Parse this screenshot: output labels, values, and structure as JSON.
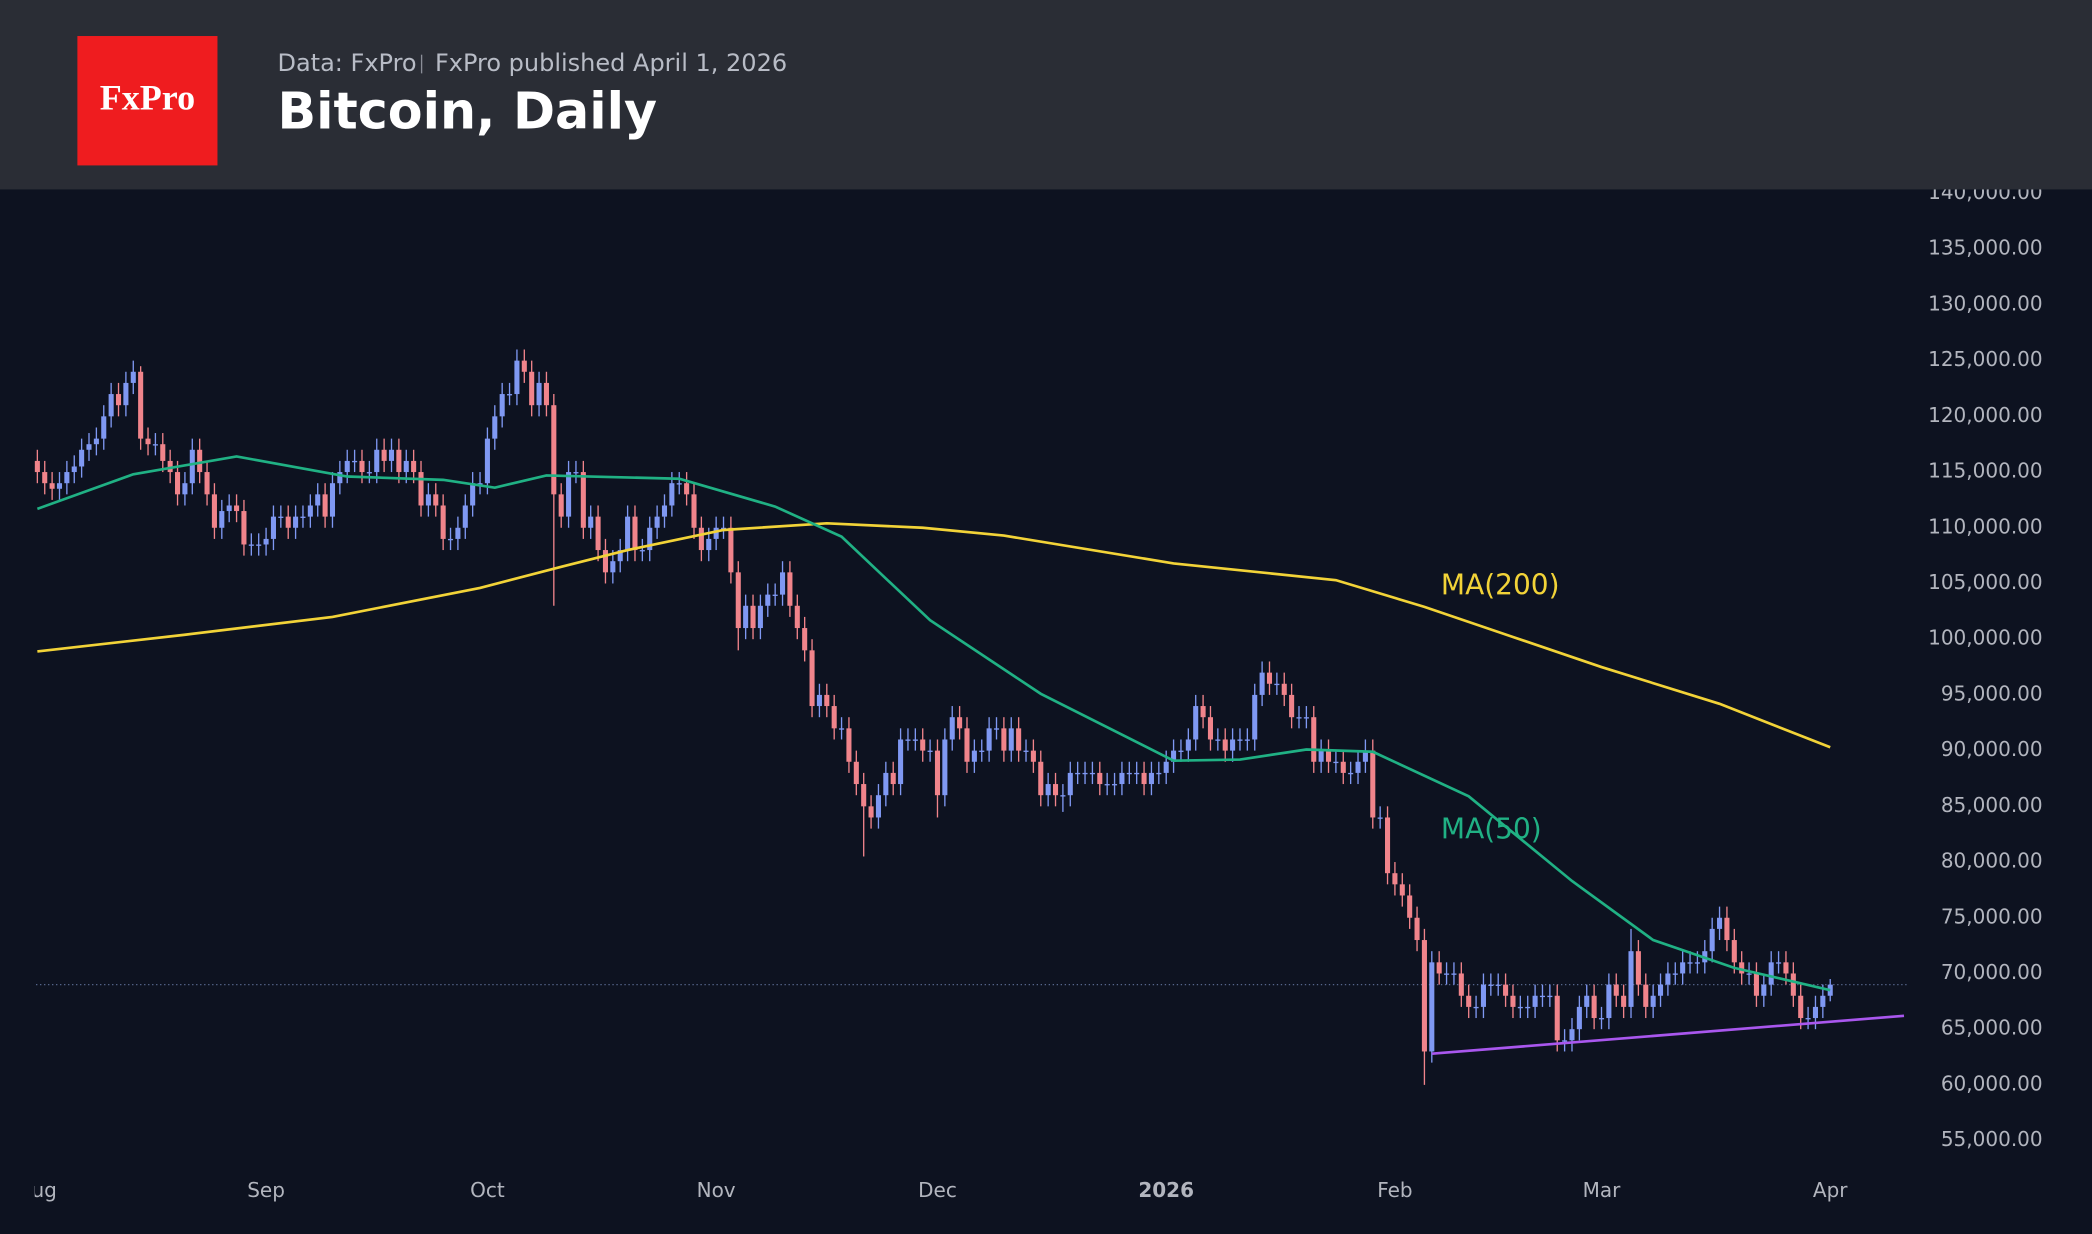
{
  "header": {
    "logo": "FxPro",
    "source": "Data: FxPro",
    "published": "FxPro published April 1, 2026",
    "title": "Bitcoin, Daily"
  },
  "chart_data": {
    "type": "candlestick",
    "categories": [
      "Aug",
      null,
      null,
      null,
      null,
      null,
      null,
      null,
      null,
      null,
      null,
      null,
      null,
      null,
      null,
      null,
      null,
      null,
      null,
      null,
      null,
      null,
      null,
      null,
      null,
      null,
      null,
      null,
      null,
      null,
      null,
      "Sep",
      null,
      null,
      null,
      null,
      null,
      null,
      null,
      null,
      null,
      null,
      null,
      null,
      null,
      null,
      null,
      null,
      null,
      null,
      null,
      null,
      null,
      null,
      null,
      null,
      null,
      null,
      null,
      null,
      null,
      "Oct",
      null,
      null,
      null,
      null,
      null,
      null,
      null,
      null,
      null,
      null,
      null,
      null,
      null,
      null,
      null,
      null,
      null,
      null,
      null,
      null,
      null,
      null,
      null,
      null,
      null,
      null,
      null,
      null,
      null,
      null,
      "Nov",
      null,
      null,
      null,
      null,
      null,
      null,
      null,
      null,
      null,
      null,
      null,
      null,
      null,
      null,
      null,
      null,
      null,
      null,
      null,
      null,
      null,
      null,
      null,
      null,
      null,
      null,
      null,
      null,
      null,
      "Dec",
      null,
      null,
      null,
      null,
      null,
      null,
      null,
      null,
      null,
      null,
      null,
      null,
      null,
      null,
      null,
      null,
      null,
      null,
      null,
      null,
      null,
      null,
      null,
      null,
      null,
      null,
      null,
      null,
      null,
      null,
      "2026",
      null,
      null,
      null,
      null,
      null,
      null,
      null,
      null,
      null,
      null,
      null,
      null,
      null,
      null,
      null,
      null,
      null,
      null,
      null,
      null,
      null,
      null,
      null,
      null,
      null,
      null,
      null,
      null,
      null,
      null,
      "Feb",
      null,
      null,
      null,
      null,
      null,
      null,
      null,
      null,
      null,
      null,
      null,
      null,
      null,
      null,
      null,
      null,
      null,
      null,
      null,
      null,
      null,
      null,
      null,
      null,
      null,
      null,
      null,
      "Mar",
      null,
      null,
      null,
      null,
      null,
      null,
      null,
      null,
      null,
      null,
      null,
      null,
      null,
      null,
      null,
      null,
      null,
      null,
      null,
      null,
      null,
      null,
      null,
      null,
      null,
      null,
      null,
      null,
      null,
      null,
      "Apr"
    ],
    "open": [
      116000,
      115000,
      114000,
      113500,
      114000,
      115000,
      115500,
      117000,
      117500,
      118000,
      120000,
      122000,
      121000,
      123000,
      124000,
      118000,
      117500,
      117500,
      116000,
      115000,
      113000,
      114000,
      117000,
      115000,
      113000,
      110000,
      111500,
      112000,
      111500,
      108500,
      108500,
      108500,
      109000,
      111000,
      111000,
      110000,
      111000,
      111000,
      112000,
      113000,
      111000,
      114000,
      115000,
      116000,
      116000,
      115000,
      115000,
      117000,
      116000,
      117000,
      115000,
      116000,
      115000,
      112000,
      113000,
      112000,
      109000,
      109000,
      110000,
      112000,
      114000,
      114000,
      118000,
      120000,
      122000,
      122000,
      125000,
      124000,
      121000,
      123000,
      121000,
      113000,
      111000,
      115000,
      115000,
      110000,
      111000,
      108000,
      106000,
      107000,
      108000,
      111000,
      108000,
      108000,
      110000,
      111000,
      112000,
      114000,
      114000,
      113000,
      110000,
      108000,
      109000,
      110000,
      110000,
      106000,
      101000,
      103000,
      101000,
      103000,
      104000,
      104000,
      106000,
      103000,
      101000,
      99000,
      94000,
      95000,
      94000,
      92000,
      92000,
      89000,
      87000,
      85000,
      84000,
      86000,
      88000,
      87000,
      91000,
      91000,
      91000,
      90000,
      90000,
      86000,
      91000,
      93000,
      92000,
      89000,
      90000,
      90000,
      92000,
      92000,
      90000,
      92000,
      90000,
      90000,
      89000,
      86000,
      87000,
      86000,
      86000,
      88000,
      88000,
      88000,
      88000,
      87000,
      87000,
      87000,
      88000,
      88000,
      88000,
      87000,
      88000,
      88000,
      89000,
      90000,
      90000,
      91000,
      94000,
      93000,
      91000,
      91000,
      90000,
      91000,
      91000,
      91000,
      95000,
      97000,
      96000,
      96000,
      95000,
      93000,
      93000,
      93000,
      89000,
      90000,
      89000,
      89000,
      88000,
      88000,
      89000,
      90000,
      84000,
      84000,
      79000,
      78000,
      77000,
      75000,
      73000,
      63000,
      71000,
      70000,
      70000,
      70000,
      68000,
      67000,
      67000,
      69000,
      69000,
      69000,
      68000,
      67000,
      67000,
      67000,
      68000,
      68000,
      68000,
      64000,
      64000,
      65000,
      67000,
      68000,
      66000,
      66000,
      69000,
      68000,
      67000,
      72000,
      69000,
      67000,
      68000,
      69000,
      70000,
      70000,
      71000,
      71000,
      71000,
      72000,
      74000,
      75000,
      73000,
      71000,
      70000,
      70000,
      68000,
      69000,
      71000,
      71000,
      70000,
      68000,
      66000,
      66000,
      67000,
      68000
    ],
    "high": [
      117000,
      116000,
      115000,
      115000,
      116000,
      116500,
      118000,
      118500,
      119000,
      121000,
      123000,
      123000,
      124000,
      125000,
      124500,
      119000,
      118500,
      118500,
      117000,
      116000,
      115000,
      118000,
      118000,
      116000,
      114000,
      112500,
      113000,
      113000,
      112500,
      109500,
      109500,
      110000,
      112000,
      112000,
      112000,
      112000,
      112000,
      113000,
      114000,
      114000,
      115000,
      116000,
      117000,
      117000,
      117000,
      116000,
      118000,
      118000,
      118000,
      118000,
      117000,
      117000,
      116000,
      114000,
      114000,
      113000,
      110000,
      111000,
      113000,
      115000,
      115000,
      119000,
      121000,
      123000,
      123000,
      126000,
      126000,
      125000,
      124000,
      124000,
      122000,
      114000,
      116000,
      116000,
      116000,
      112000,
      112000,
      109000,
      108000,
      109000,
      112000,
      112000,
      109000,
      111000,
      112000,
      113000,
      115000,
      115000,
      115000,
      114000,
      111000,
      110000,
      111000,
      111000,
      111000,
      107000,
      104000,
      104000,
      104000,
      105000,
      105000,
      107000,
      107000,
      104000,
      102000,
      100000,
      96000,
      96000,
      95000,
      93000,
      93000,
      90000,
      88000,
      86000,
      87000,
      89000,
      89000,
      92000,
      92000,
      92000,
      92000,
      91000,
      91000,
      92000,
      94000,
      94000,
      93000,
      91000,
      91000,
      93000,
      93000,
      93000,
      93000,
      93000,
      91000,
      91000,
      90000,
      88000,
      88000,
      87000,
      89000,
      89000,
      89000,
      89000,
      89000,
      88000,
      88000,
      89000,
      89000,
      89000,
      89000,
      89000,
      89000,
      90000,
      91000,
      91000,
      92000,
      95000,
      95000,
      94000,
      92000,
      92000,
      92000,
      92000,
      92000,
      96000,
      98000,
      98000,
      97000,
      97000,
      96000,
      94000,
      94000,
      94000,
      91000,
      91000,
      90000,
      90000,
      89000,
      90000,
      91000,
      91000,
      85000,
      85000,
      80000,
      79000,
      78000,
      76000,
      74000,
      72000,
      72000,
      71000,
      71000,
      71000,
      69000,
      68000,
      70000,
      70000,
      70000,
      70000,
      69000,
      68000,
      68000,
      69000,
      69000,
      69000,
      69000,
      65000,
      66000,
      68000,
      69000,
      69000,
      67000,
      70000,
      70000,
      69000,
      74000,
      73000,
      70000,
      69000,
      70000,
      71000,
      71000,
      72000,
      72000,
      72000,
      73000,
      75000,
      76000,
      76000,
      74000,
      72000,
      71000,
      71000,
      70000,
      72000,
      72000,
      72000,
      71000,
      69000,
      67000,
      68000,
      69000,
      69500
    ],
    "low": [
      114000,
      113000,
      112500,
      112500,
      113000,
      114000,
      114500,
      116000,
      116500,
      117000,
      119000,
      120000,
      120000,
      122000,
      117000,
      116500,
      116500,
      115000,
      114000,
      112000,
      112000,
      113000,
      114000,
      112000,
      109000,
      109000,
      110500,
      110500,
      107500,
      107500,
      107500,
      107500,
      108000,
      110000,
      109000,
      109000,
      110000,
      110000,
      111000,
      110000,
      110000,
      113000,
      114000,
      115000,
      114000,
      114000,
      114000,
      115000,
      115000,
      114000,
      114000,
      114000,
      111000,
      111000,
      111000,
      108000,
      108000,
      108000,
      109000,
      111000,
      113000,
      113000,
      117000,
      119000,
      121000,
      121000,
      123000,
      120000,
      120000,
      120000,
      103000,
      110000,
      110000,
      114000,
      109000,
      109000,
      107000,
      105000,
      105000,
      106000,
      107000,
      107000,
      107000,
      107000,
      109000,
      110000,
      111000,
      113000,
      112000,
      109000,
      107000,
      107000,
      108000,
      109000,
      105000,
      99000,
      100000,
      100000,
      100000,
      102000,
      103000,
      103000,
      102000,
      100000,
      98000,
      93000,
      93000,
      93000,
      91000,
      91000,
      88000,
      86000,
      80500,
      83000,
      83000,
      85000,
      86000,
      86000,
      90000,
      90000,
      89000,
      89000,
      84000,
      85000,
      90000,
      91000,
      88000,
      88000,
      89000,
      89000,
      91000,
      89000,
      89000,
      89000,
      89000,
      88000,
      85000,
      85000,
      85000,
      84500,
      85000,
      87000,
      87000,
      87000,
      86000,
      86000,
      86000,
      86000,
      87000,
      87000,
      86000,
      86000,
      87000,
      87000,
      88000,
      89000,
      89000,
      90000,
      92000,
      90000,
      90000,
      89000,
      89000,
      90000,
      90000,
      90000,
      94000,
      95000,
      95000,
      94000,
      92000,
      92000,
      92000,
      88000,
      88000,
      88000,
      88000,
      87000,
      87000,
      87000,
      88000,
      83000,
      83000,
      78000,
      77000,
      76000,
      74000,
      72000,
      60000,
      62000,
      69000,
      69000,
      69000,
      67000,
      66000,
      66000,
      66000,
      68000,
      68000,
      67000,
      66000,
      66000,
      66000,
      66000,
      67000,
      67000,
      63000,
      63000,
      63000,
      64000,
      66000,
      65000,
      65000,
      65000,
      67000,
      66000,
      66000,
      68000,
      66000,
      66000,
      67000,
      68000,
      69000,
      69000,
      70000,
      70000,
      70000,
      71000,
      73000,
      72000,
      70000,
      69000,
      69000,
      67000,
      67000,
      68000,
      70000,
      69000,
      67000,
      65000,
      65000,
      65000,
      66000,
      67500
    ],
    "close": [
      115000,
      114000,
      113500,
      114000,
      115000,
      115500,
      117000,
      117500,
      118000,
      120000,
      122000,
      121000,
      123000,
      124000,
      118000,
      117500,
      117500,
      116000,
      115000,
      113000,
      114000,
      117000,
      115000,
      113000,
      110000,
      111500,
      112000,
      111500,
      108500,
      108500,
      108500,
      109000,
      111000,
      111000,
      110000,
      111000,
      111000,
      112000,
      113000,
      111000,
      114000,
      115000,
      116000,
      116000,
      115000,
      115000,
      117000,
      116000,
      117000,
      115000,
      116000,
      115000,
      112000,
      113000,
      112000,
      109000,
      109000,
      110000,
      112000,
      114000,
      114000,
      118000,
      120000,
      122000,
      122000,
      125000,
      124000,
      121000,
      123000,
      121000,
      113000,
      111000,
      115000,
      115000,
      110000,
      111000,
      108000,
      106000,
      107000,
      108000,
      111000,
      108000,
      108000,
      110000,
      111000,
      112000,
      114000,
      114000,
      113000,
      110000,
      108000,
      109000,
      110000,
      110000,
      106000,
      101000,
      103000,
      101000,
      103000,
      104000,
      104000,
      106000,
      103000,
      101000,
      99000,
      94000,
      95000,
      94000,
      92000,
      92000,
      89000,
      87000,
      85000,
      84000,
      86000,
      88000,
      87000,
      91000,
      91000,
      91000,
      90000,
      90000,
      86000,
      91000,
      93000,
      92000,
      89000,
      90000,
      90000,
      92000,
      92000,
      90000,
      92000,
      90000,
      90000,
      89000,
      86000,
      87000,
      86000,
      86000,
      88000,
      88000,
      88000,
      88000,
      87000,
      87000,
      87000,
      88000,
      88000,
      88000,
      87000,
      88000,
      88000,
      89000,
      90000,
      90000,
      91000,
      94000,
      93000,
      91000,
      91000,
      90000,
      91000,
      91000,
      91000,
      95000,
      97000,
      96000,
      96000,
      95000,
      93000,
      93000,
      93000,
      89000,
      90000,
      89000,
      89000,
      88000,
      88000,
      89000,
      90000,
      84000,
      84000,
      79000,
      78000,
      77000,
      75000,
      73000,
      63000,
      71000,
      70000,
      70000,
      70000,
      68000,
      67000,
      67000,
      69000,
      69000,
      69000,
      68000,
      67000,
      67000,
      67000,
      68000,
      68000,
      68000,
      64000,
      64000,
      65000,
      67000,
      68000,
      66000,
      66000,
      69000,
      68000,
      67000,
      72000,
      69000,
      67000,
      68000,
      69000,
      70000,
      70000,
      71000,
      71000,
      71000,
      72000,
      74000,
      75000,
      73000,
      71000,
      70000,
      70000,
      68000,
      69000,
      71000,
      71000,
      70000,
      68000,
      66000,
      66000,
      67000,
      68000,
      69000
    ],
    "up_color": "#7f98f2",
    "down_color": "#f0848b",
    "ylim": [
      53000,
      140400
    ],
    "yticks": [
      {
        "value": 55000,
        "label": "55,000.00"
      },
      {
        "value": 60000,
        "label": "60,000.00"
      },
      {
        "value": 65000,
        "label": "65,000.00"
      },
      {
        "value": 70000,
        "label": "70,000.00"
      },
      {
        "value": 75000,
        "label": "75,000.00"
      },
      {
        "value": 80000,
        "label": "80,000.00"
      },
      {
        "value": 85000,
        "label": "85,000.00"
      },
      {
        "value": 90000,
        "label": "90,000.00"
      },
      {
        "value": 95000,
        "label": "95,000.00"
      },
      {
        "value": 100000,
        "label": "100,000.00"
      },
      {
        "value": 105000,
        "label": "105,000.00"
      },
      {
        "value": 110000,
        "label": "110,000.00"
      },
      {
        "value": 115000,
        "label": "115,000.00"
      },
      {
        "value": 120000,
        "label": "120,000.00"
      },
      {
        "value": 125000,
        "label": "125,000.00"
      },
      {
        "value": 130000,
        "label": "130,000.00"
      },
      {
        "value": 135000,
        "label": "135,000.00"
      },
      {
        "value": 140000,
        "label": "140,000.00"
      }
    ],
    "overlays": [
      {
        "name": "MA(200)",
        "color": "#f2d338",
        "x": [
          0,
          20,
          40,
          60,
          71,
          80,
          93,
          107,
          120,
          131,
          154,
          176,
          188,
          200,
          212,
          228,
          243
        ],
        "values": [
          98900,
          100400,
          102000,
          104600,
          106500,
          108000,
          109800,
          110400,
          110000,
          109300,
          106800,
          105300,
          102900,
          100200,
          97500,
          94200,
          90300
        ]
      },
      {
        "name": "MA(50)",
        "color": "#20b184",
        "x": [
          0,
          13,
          27,
          42,
          55,
          62,
          69,
          87,
          100,
          109,
          121,
          136,
          154,
          163,
          172,
          181,
          194,
          208,
          219,
          230,
          243
        ],
        "values": [
          111700,
          114800,
          116400,
          114600,
          114300,
          113600,
          114700,
          114400,
          111900,
          109200,
          101700,
          95100,
          89100,
          89200,
          90100,
          89900,
          85900,
          78300,
          73000,
          70500,
          68500
        ]
      },
      {
        "color": "#a957ee",
        "x": [
          189,
          253
        ],
        "values": [
          62800,
          66200
        ]
      }
    ],
    "last_price_line": true
  }
}
